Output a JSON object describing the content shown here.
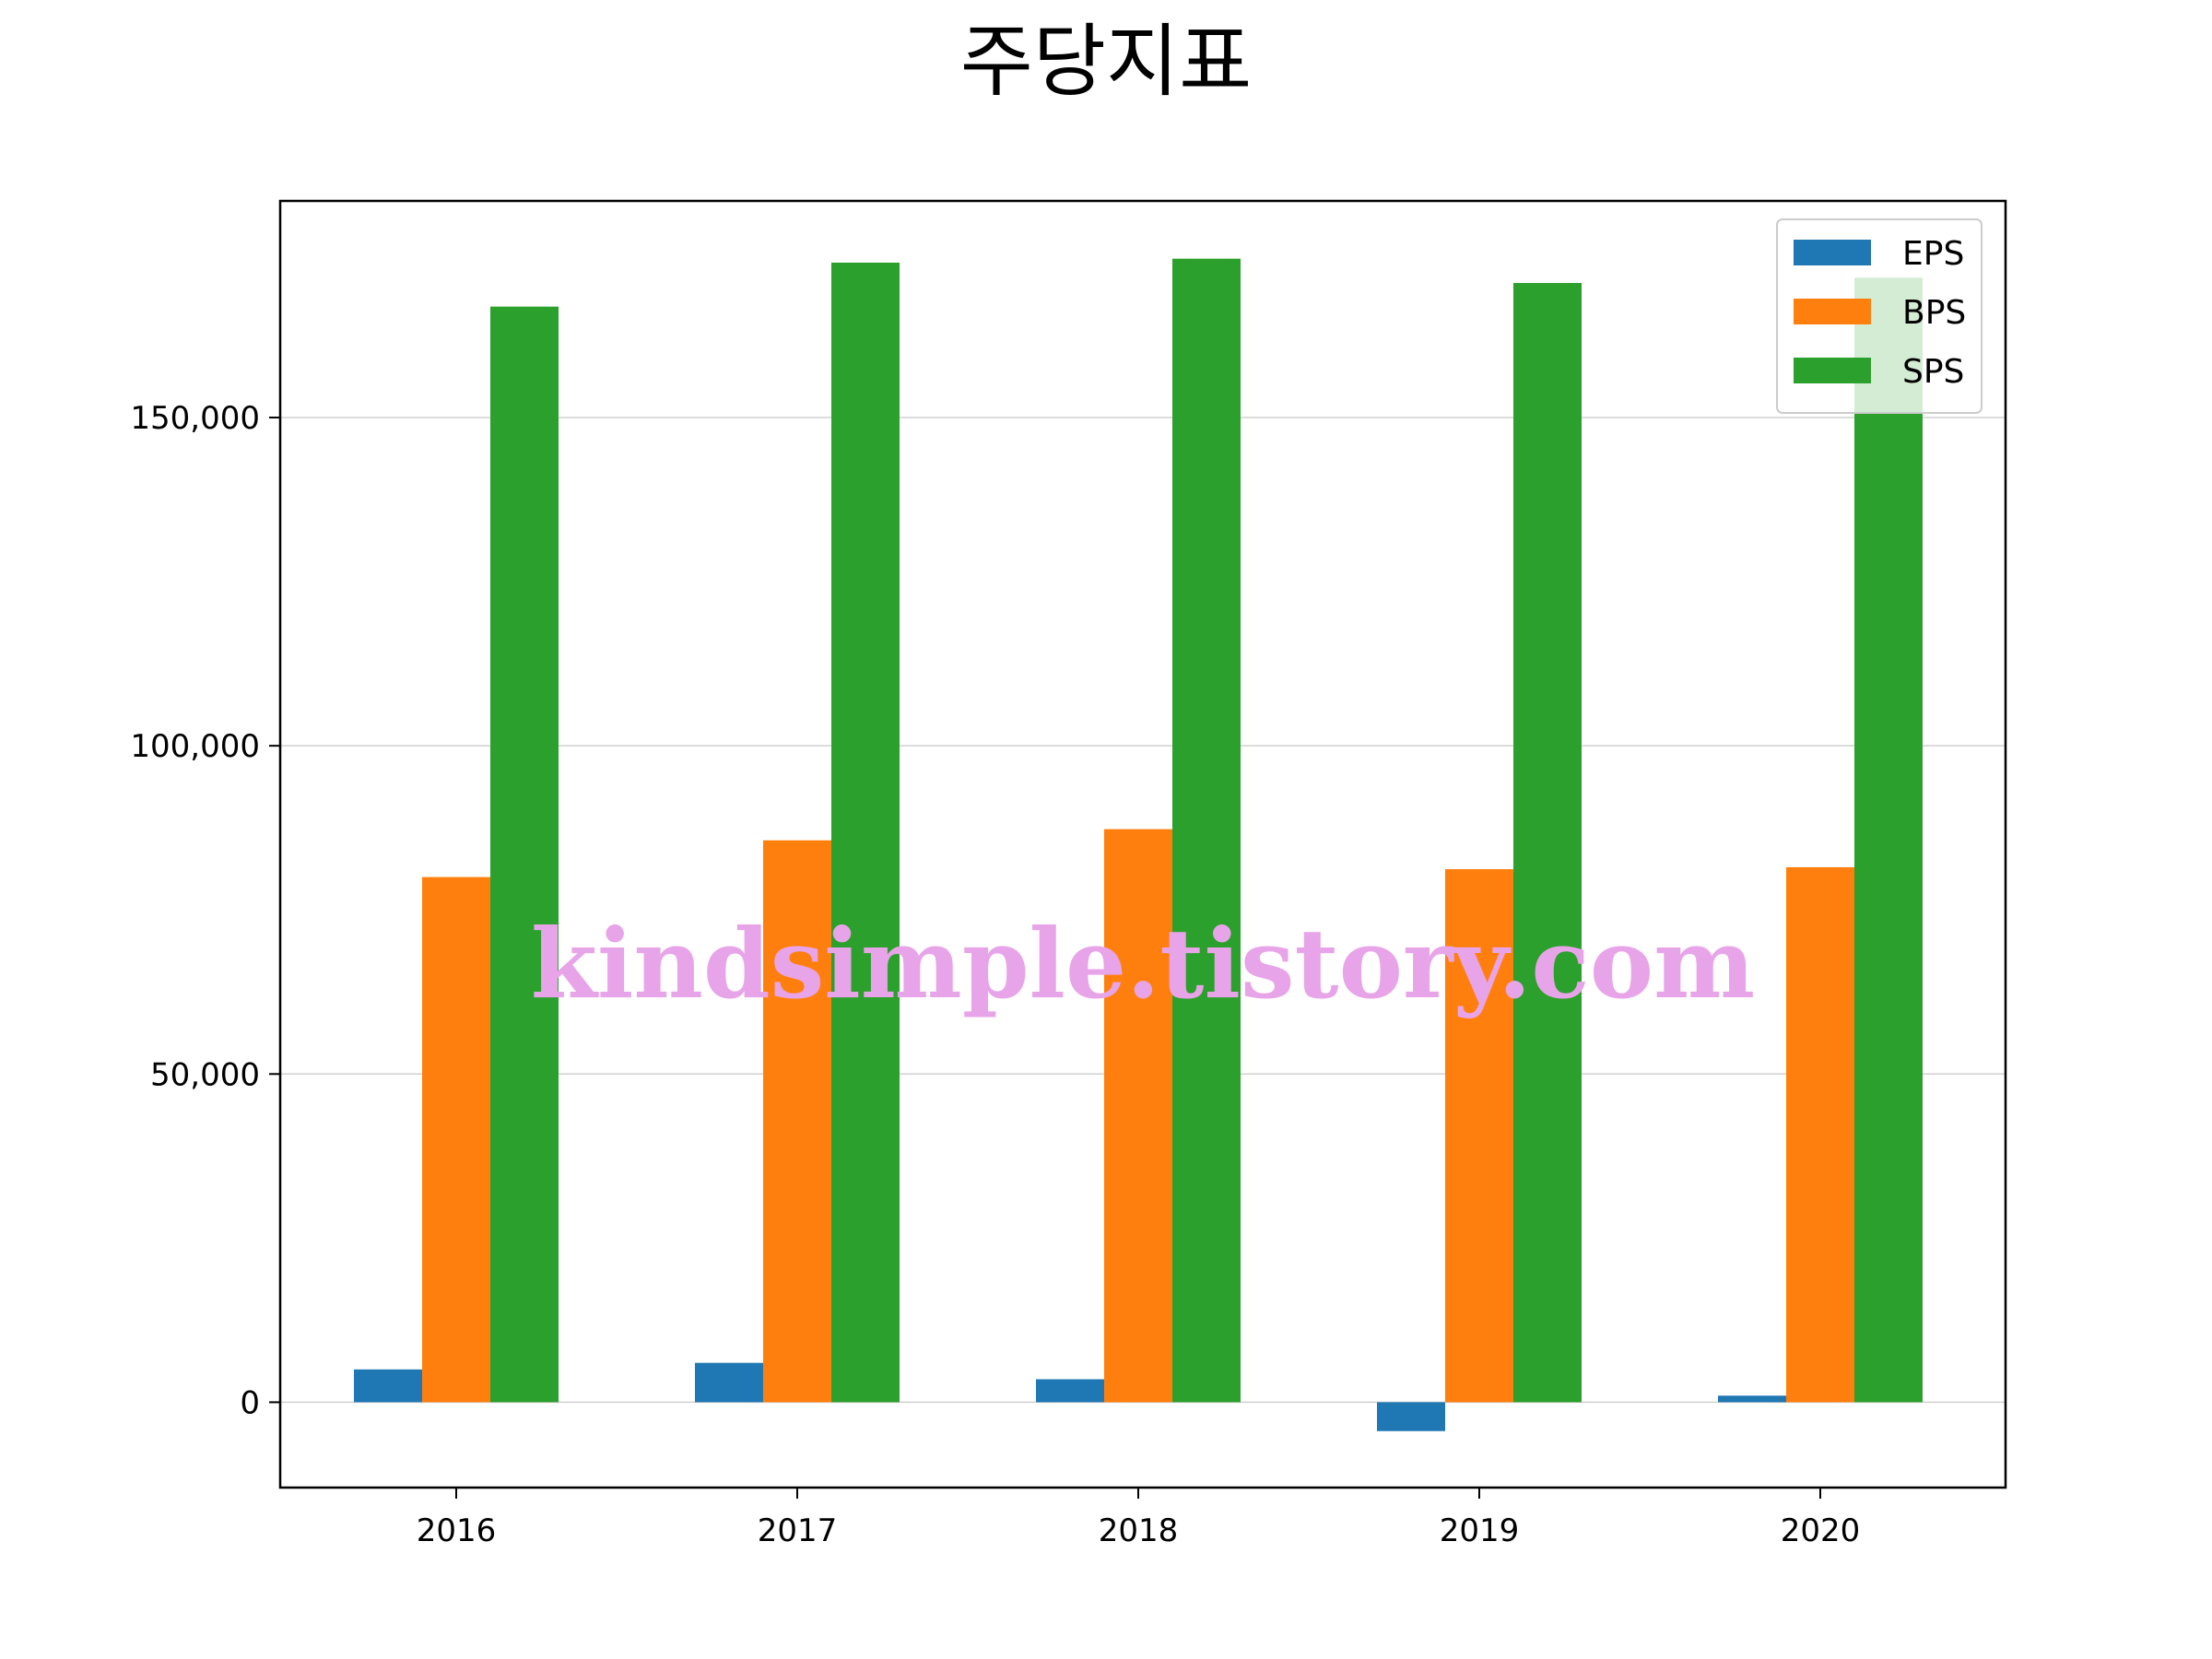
{
  "chart_data": {
    "type": "bar",
    "title": "주당지표",
    "xlabel": "",
    "ylabel": "",
    "categories": [
      "2016",
      "2017",
      "2018",
      "2019",
      "2020"
    ],
    "series": [
      {
        "name": "EPS",
        "color": "#1f77b4",
        "values": [
          5000,
          6000,
          3500,
          -4400,
          1000
        ]
      },
      {
        "name": "BPS",
        "color": "#ff7f0e",
        "values": [
          80000,
          85600,
          87300,
          81200,
          81500
        ]
      },
      {
        "name": "SPS",
        "color": "#2ca02c",
        "values": [
          166900,
          173600,
          174200,
          170500,
          171300
        ]
      }
    ],
    "ylim": [
      -13000,
      183000
    ],
    "yticks": [
      0,
      50000,
      100000,
      150000
    ],
    "ytick_labels": [
      "0",
      "50,000",
      "100,000",
      "150,000"
    ],
    "grid": "horizontal",
    "legend_position": "top-right",
    "watermark": "kindsimple.tistory.com"
  }
}
